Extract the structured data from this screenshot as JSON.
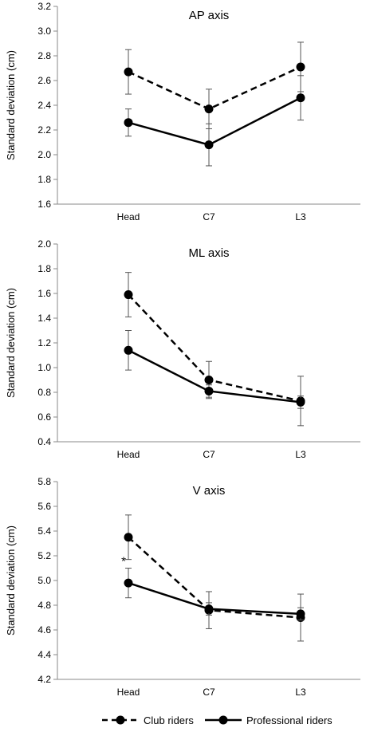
{
  "chart_data": [
    {
      "type": "line",
      "title": "AP axis",
      "ylabel": "Standard deviation (cm)",
      "xlabel": "",
      "categories": [
        "Head",
        "C7",
        "L3"
      ],
      "ylim": [
        1.6,
        3.2
      ],
      "yticks": [
        "1.6",
        "1.8",
        "2.0",
        "2.2",
        "2.4",
        "2.6",
        "2.8",
        "3.0",
        "3.2"
      ],
      "grid": false,
      "series": [
        {
          "name": "Club riders",
          "values": [
            2.67,
            2.37,
            2.71
          ],
          "error": [
            0.18,
            0.16,
            0.2
          ],
          "style": "dashed"
        },
        {
          "name": "Professional riders",
          "values": [
            2.26,
            2.08,
            2.46
          ],
          "error": [
            0.11,
            0.17,
            0.18
          ],
          "style": "solid"
        }
      ],
      "annotations": []
    },
    {
      "type": "line",
      "title": "ML axis",
      "ylabel": "Standard deviation (cm)",
      "xlabel": "",
      "categories": [
        "Head",
        "C7",
        "L3"
      ],
      "ylim": [
        0.4,
        2.0
      ],
      "yticks": [
        "0.4",
        "0.6",
        "0.8",
        "1.0",
        "1.2",
        "1.4",
        "1.6",
        "1.8",
        "2.0"
      ],
      "grid": false,
      "series": [
        {
          "name": "Club riders",
          "values": [
            1.59,
            0.9,
            0.73
          ],
          "error": [
            0.18,
            0.15,
            0.2
          ],
          "style": "dashed"
        },
        {
          "name": "Professional riders",
          "values": [
            1.14,
            0.81,
            0.72
          ],
          "error": [
            0.16,
            0.05,
            0.05
          ],
          "style": "solid"
        }
      ],
      "annotations": []
    },
    {
      "type": "line",
      "title": "V axis",
      "ylabel": "Standard deviation (cm)",
      "xlabel": "",
      "categories": [
        "Head",
        "C7",
        "L3"
      ],
      "ylim": [
        4.2,
        5.8
      ],
      "yticks": [
        "4.2",
        "4.4",
        "4.6",
        "4.8",
        "5.0",
        "5.2",
        "5.4",
        "5.6",
        "5.8"
      ],
      "grid": false,
      "series": [
        {
          "name": "Club riders",
          "values": [
            5.35,
            4.76,
            4.7
          ],
          "error": [
            0.18,
            0.15,
            0.19
          ],
          "style": "dashed"
        },
        {
          "name": "Professional riders",
          "values": [
            4.98,
            4.77,
            4.73
          ],
          "error": [
            0.12,
            0.05,
            0.05
          ],
          "style": "solid"
        }
      ],
      "annotations": [
        {
          "text": "*",
          "category": "Head"
        }
      ]
    }
  ],
  "legend": {
    "placement": "bottom",
    "items": [
      {
        "label": "Club riders",
        "style": "dashed"
      },
      {
        "label": "Professional riders",
        "style": "solid"
      }
    ]
  },
  "colors": {
    "line": "#000000",
    "errorbar": "#555555",
    "axis": "#888888"
  }
}
